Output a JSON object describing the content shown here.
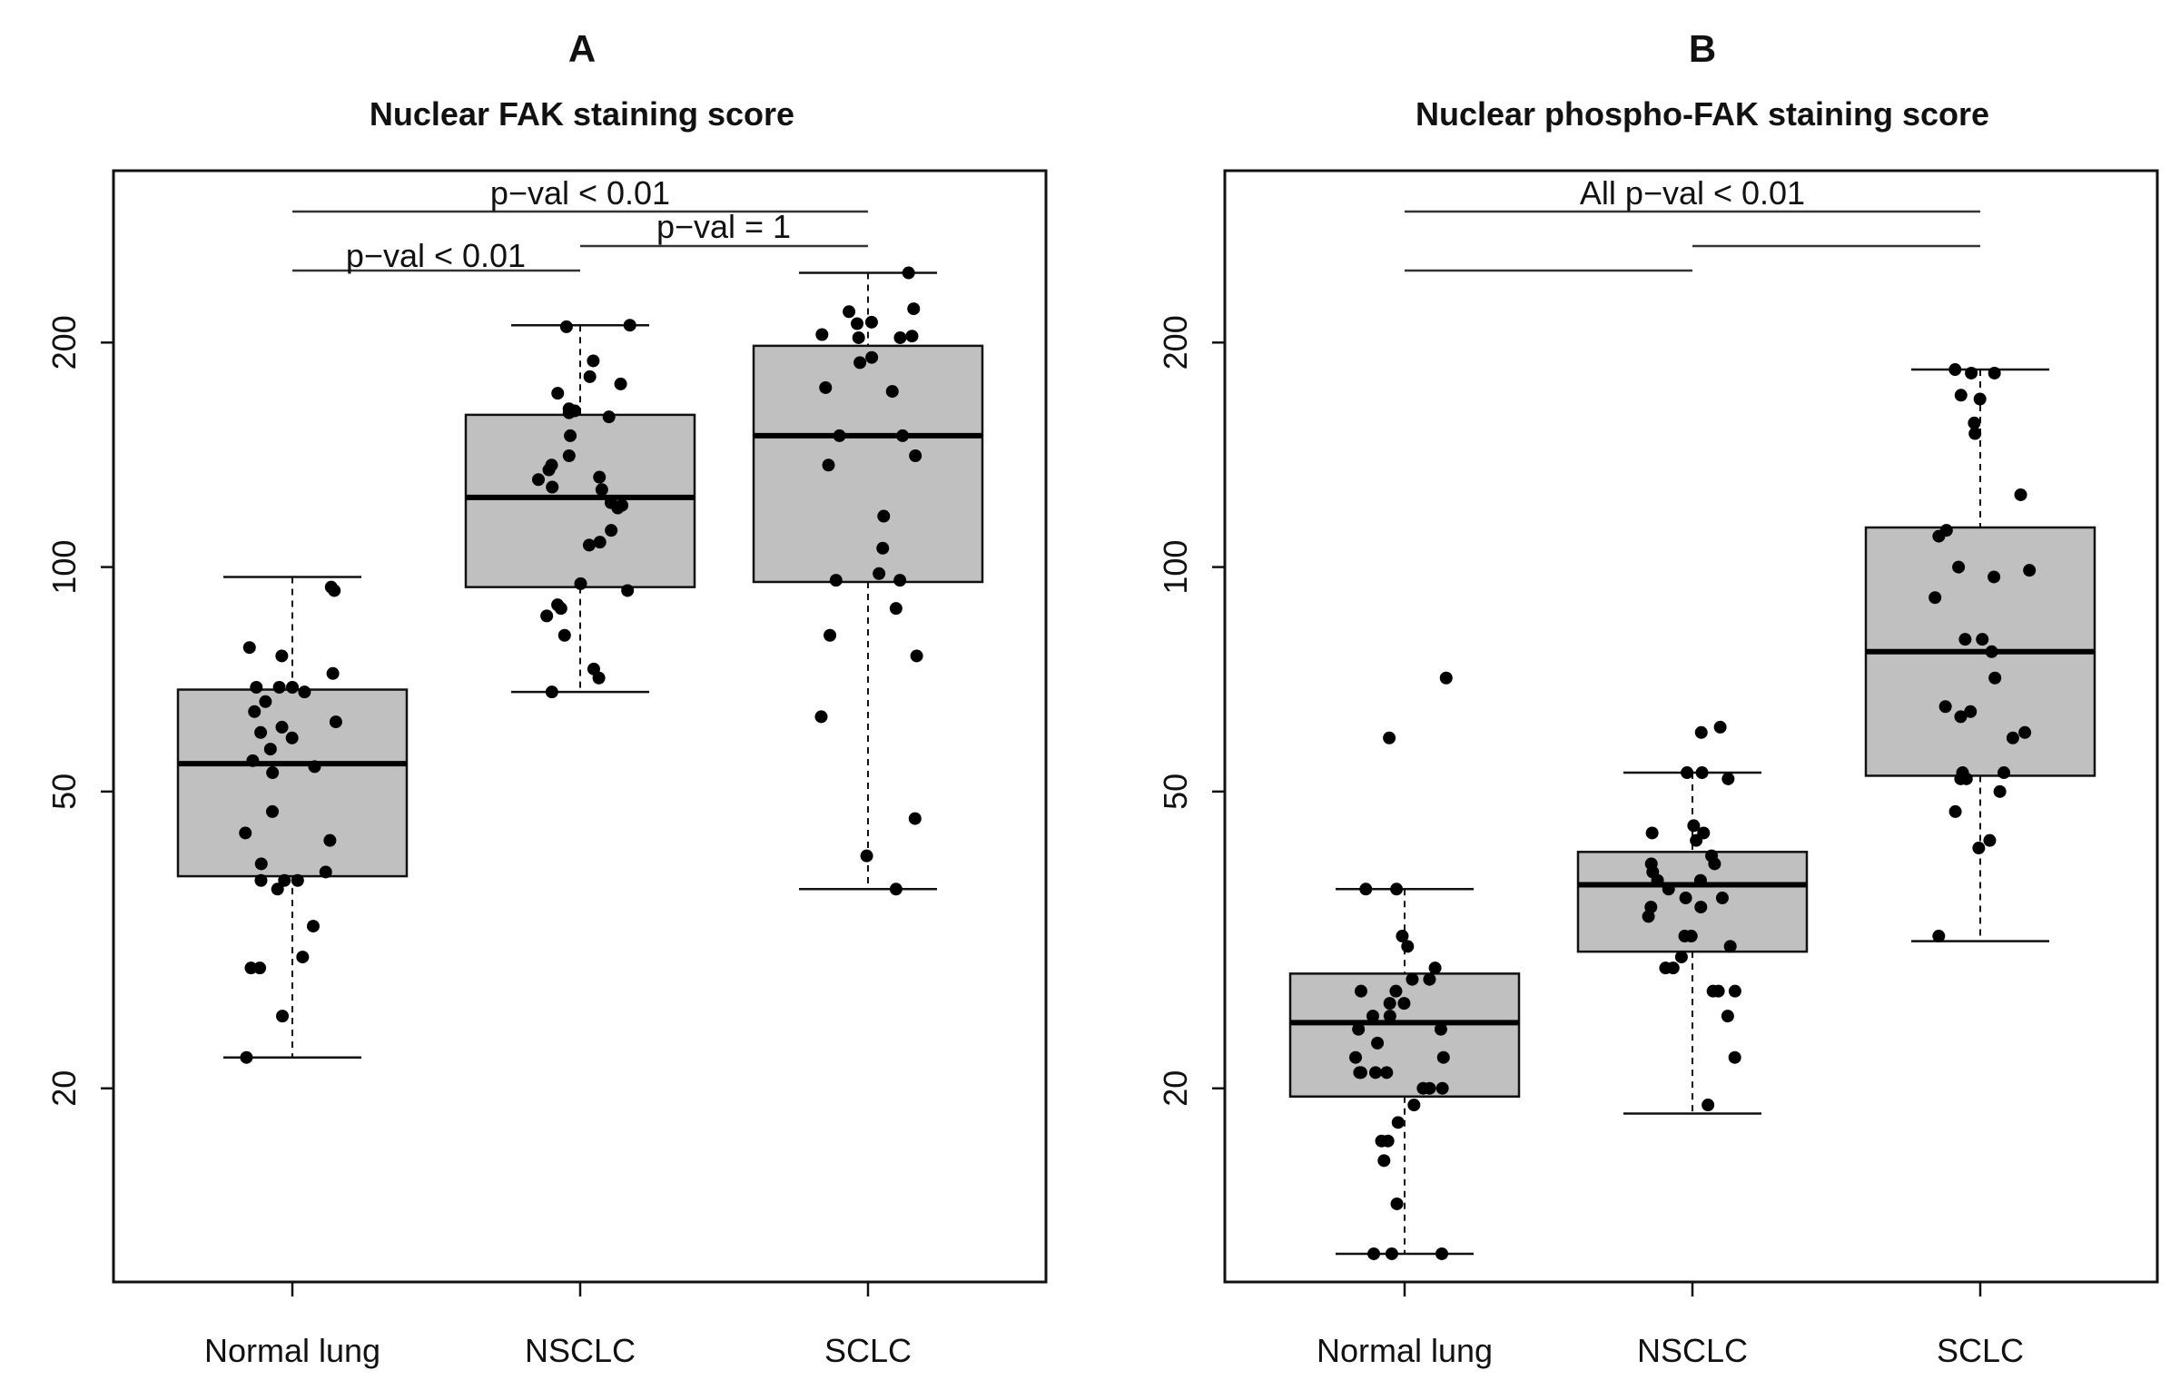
{
  "chart_data": [
    {
      "type": "box",
      "panel_label": "A",
      "title": "Nuclear FAK staining score",
      "xlabel": "",
      "ylabel": "",
      "y_scale": "log",
      "ylim": [
        11,
        340
      ],
      "y_ticks": [
        20,
        50,
        100,
        200
      ],
      "categories": [
        "Normal lung",
        "NSCLC",
        "SCLC"
      ],
      "boxes": [
        {
          "category": "Normal lung",
          "whisker_low": 22,
          "q1": 38.5,
          "median": 54.5,
          "q3": 68.5,
          "whisker_high": 97
        },
        {
          "category": "NSCLC",
          "whisker_low": 68,
          "q1": 94,
          "median": 124,
          "q3": 160,
          "whisker_high": 211
        },
        {
          "category": "SCLC",
          "whisker_low": 37,
          "q1": 95.5,
          "median": 150,
          "q3": 198,
          "whisker_high": 248
        }
      ],
      "points": [
        [
          94,
          93,
          78,
          76,
          72,
          69,
          69,
          69,
          68,
          66,
          64,
          62,
          61,
          60,
          59,
          57,
          55,
          54,
          53,
          47,
          44,
          43,
          40,
          39,
          38,
          38,
          38,
          37,
          33,
          30,
          29,
          29,
          25,
          22
        ],
        [
          211,
          210,
          189,
          180,
          176,
          171,
          163,
          162,
          161,
          159,
          150,
          141,
          137,
          135,
          132,
          131,
          128,
          127,
          122,
          121,
          120,
          112,
          108,
          107,
          95,
          93,
          89,
          88,
          86,
          81,
          73,
          71,
          68
        ],
        [
          248,
          222,
          220,
          213,
          212,
          205,
          204,
          203,
          203,
          191,
          188,
          174,
          172,
          150,
          150,
          141,
          137,
          117,
          106,
          98,
          96,
          96,
          88,
          81,
          76,
          63,
          46,
          41,
          37
        ]
      ],
      "significance": [
        {
          "label": "p−val < 0.01",
          "pair": [
            "Normal lung",
            "SCLC"
          ]
        },
        {
          "label": "p−val = 1",
          "pair": [
            "NSCLC",
            "SCLC"
          ]
        },
        {
          "label": "p−val < 0.01",
          "pair": [
            "Normal lung",
            "NSCLC"
          ]
        }
      ]
    },
    {
      "type": "box",
      "panel_label": "B",
      "title": "Nuclear phospho-FAK staining score",
      "xlabel": "",
      "ylabel": "",
      "y_scale": "log",
      "ylim": [
        11,
        340
      ],
      "y_ticks": [
        20,
        50,
        100,
        200
      ],
      "categories": [
        "Normal lung",
        "NSCLC",
        "SCLC"
      ],
      "boxes": [
        {
          "category": "Normal lung",
          "whisker_low": 12,
          "q1": 19.5,
          "median": 24.5,
          "q3": 28.5,
          "whisker_high": 37
        },
        {
          "category": "NSCLC",
          "whisker_low": 18.5,
          "q1": 30.5,
          "median": 37.5,
          "q3": 41.5,
          "whisker_high": 53
        },
        {
          "category": "SCLC",
          "whisker_low": 31.5,
          "q1": 52.5,
          "median": 77,
          "q3": 113,
          "whisker_high": 184
        }
      ],
      "points": [
        [
          71,
          59,
          37,
          37,
          32,
          31,
          29,
          28,
          28,
          27,
          27,
          26,
          26,
          25,
          25,
          24,
          24,
          23,
          22,
          22,
          21,
          21,
          21,
          21,
          20,
          20,
          20,
          19,
          18,
          17,
          17,
          16,
          14,
          12,
          12,
          12
        ],
        [
          61,
          60,
          53,
          53,
          52,
          45,
          44,
          44,
          43,
          41,
          40,
          40,
          39,
          38,
          38,
          37,
          36,
          36,
          35,
          35,
          34,
          32,
          32,
          31,
          30,
          29,
          29,
          27,
          27,
          27,
          25,
          22,
          19
        ],
        [
          184,
          182,
          182,
          170,
          168,
          156,
          151,
          125,
          112,
          110,
          100,
          99,
          97,
          91,
          80,
          80,
          77,
          71,
          65,
          64,
          63,
          60,
          59,
          53,
          53,
          52,
          52,
          50,
          47,
          43,
          42,
          32
        ]
      ],
      "significance": [
        {
          "label": "All p−val < 0.01",
          "pair": [
            "Normal lung",
            "SCLC"
          ]
        },
        {
          "label": "",
          "pair": [
            "NSCLC",
            "SCLC"
          ]
        },
        {
          "label": "",
          "pair": [
            "Normal lung",
            "NSCLC"
          ]
        }
      ]
    }
  ]
}
